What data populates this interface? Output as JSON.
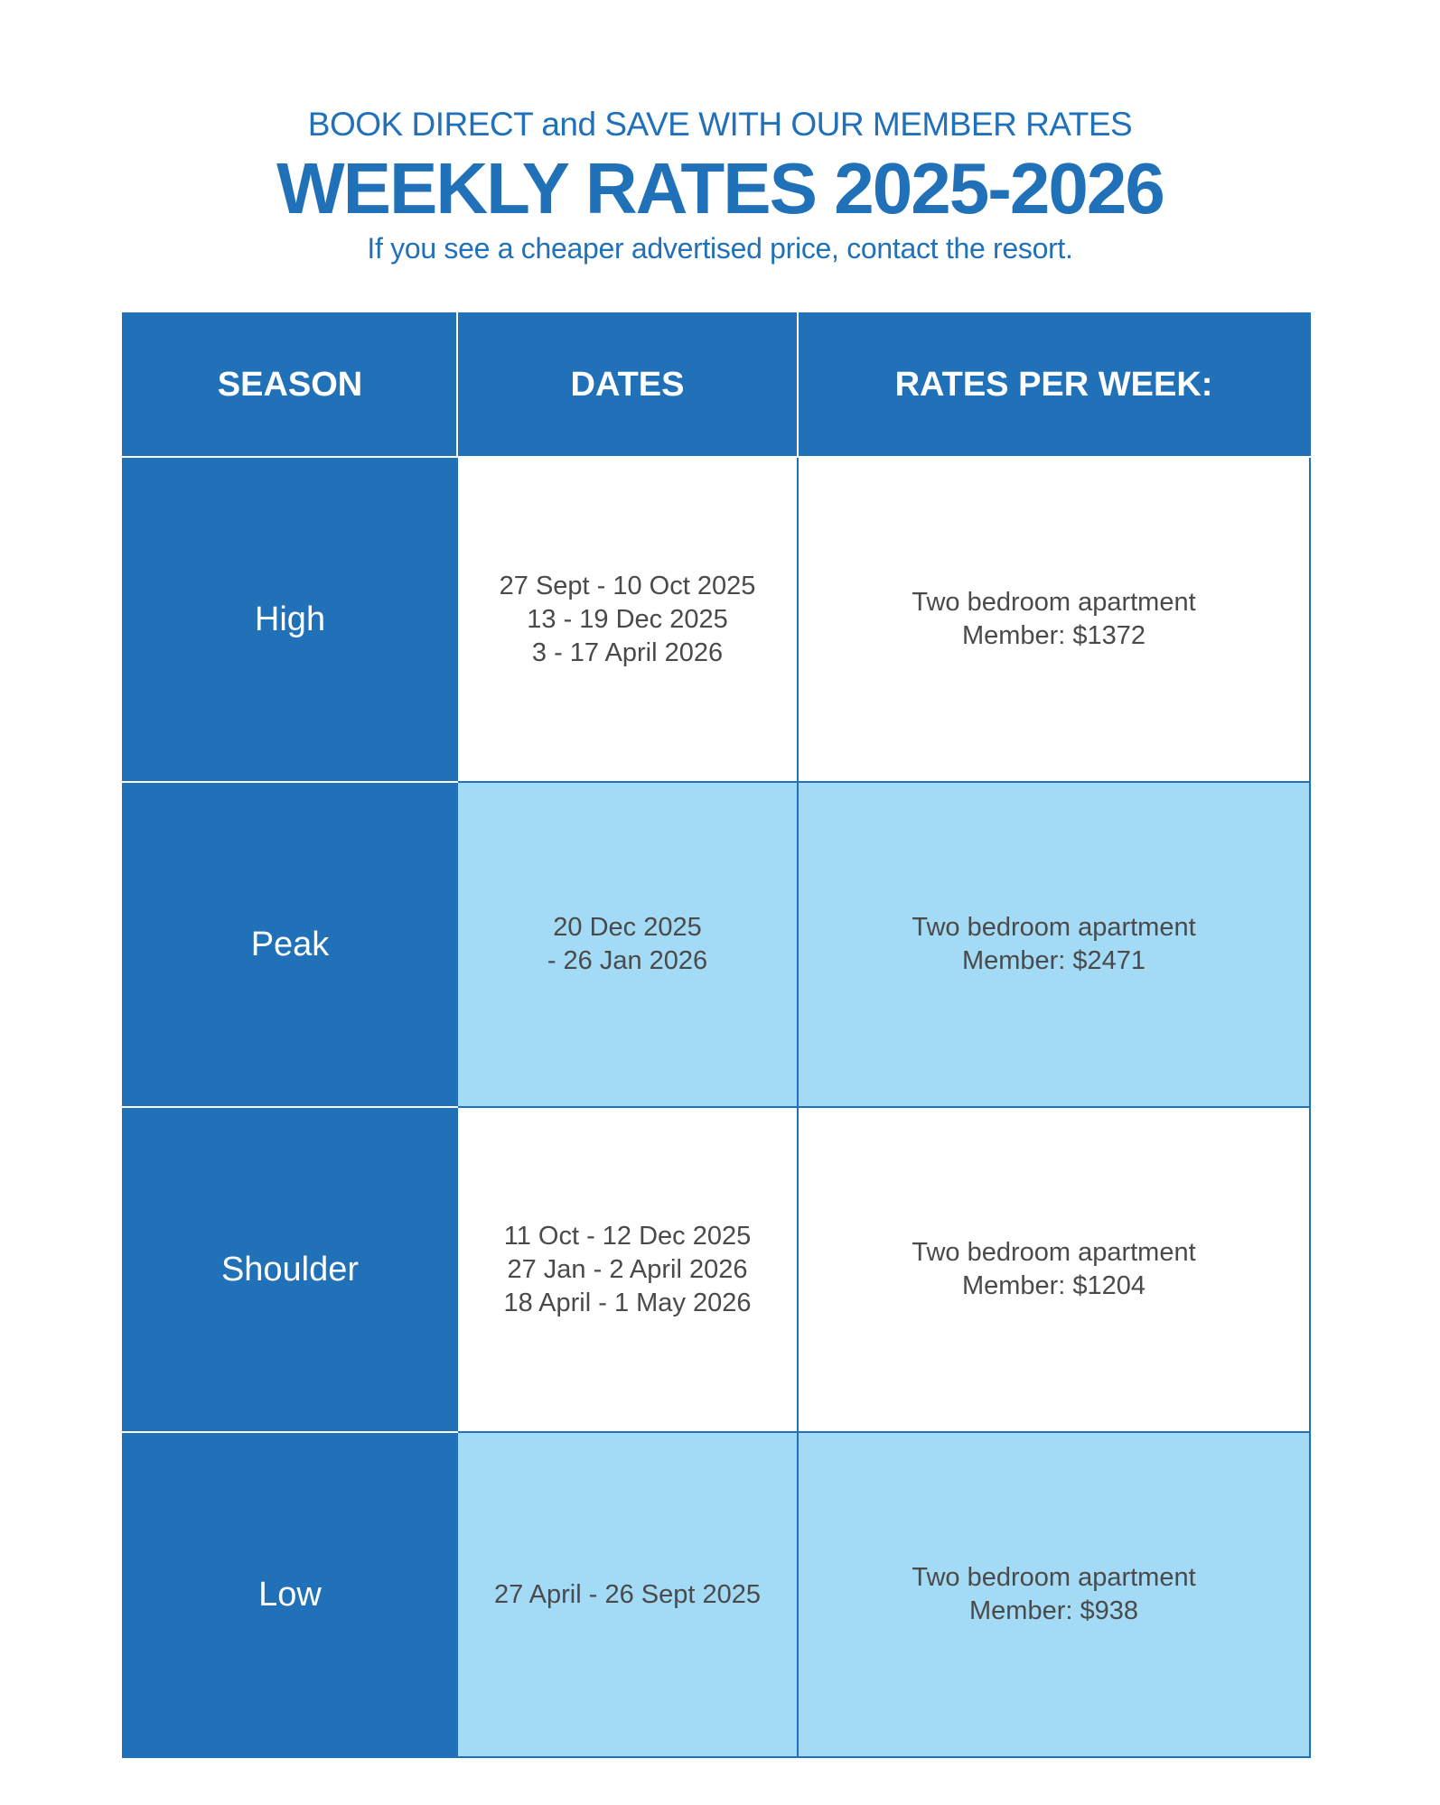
{
  "header": {
    "eyebrow": "BOOK DIRECT and SAVE WITH OUR MEMBER RATES",
    "title": "WEEKLY RATES 2025-2026",
    "subtitle": "If you see a cheaper advertised price, contact the resort."
  },
  "table": {
    "columns": [
      "SEASON",
      "DATES",
      "RATES PER WEEK:"
    ],
    "rows": [
      {
        "season": "High",
        "dates": [
          "27 Sept - 10 Oct 2025",
          "13 - 19 Dec 2025",
          "3 - 17 April 2026"
        ],
        "rate_type": "Two bedroom apartment",
        "rate": "Member: $1372"
      },
      {
        "season": "Peak",
        "dates": [
          "20 Dec 2025",
          "- 26 Jan 2026"
        ],
        "rate_type": "Two bedroom apartment",
        "rate": "Member: $2471"
      },
      {
        "season": "Shoulder",
        "dates": [
          "11 Oct - 12 Dec 2025",
          "27 Jan - 2 April 2026",
          "18 April - 1 May 2026"
        ],
        "rate_type": "Two bedroom apartment",
        "rate": "Member: $1204"
      },
      {
        "season": "Low",
        "dates": [
          "27 April - 26 Sept 2025"
        ],
        "rate_type": "Two bedroom apartment",
        "rate": "Member: $938"
      }
    ]
  },
  "colors": {
    "brand_blue": "#2171b9",
    "light_blue": "#a3dbf6",
    "text_gray": "#4a4a4a"
  }
}
